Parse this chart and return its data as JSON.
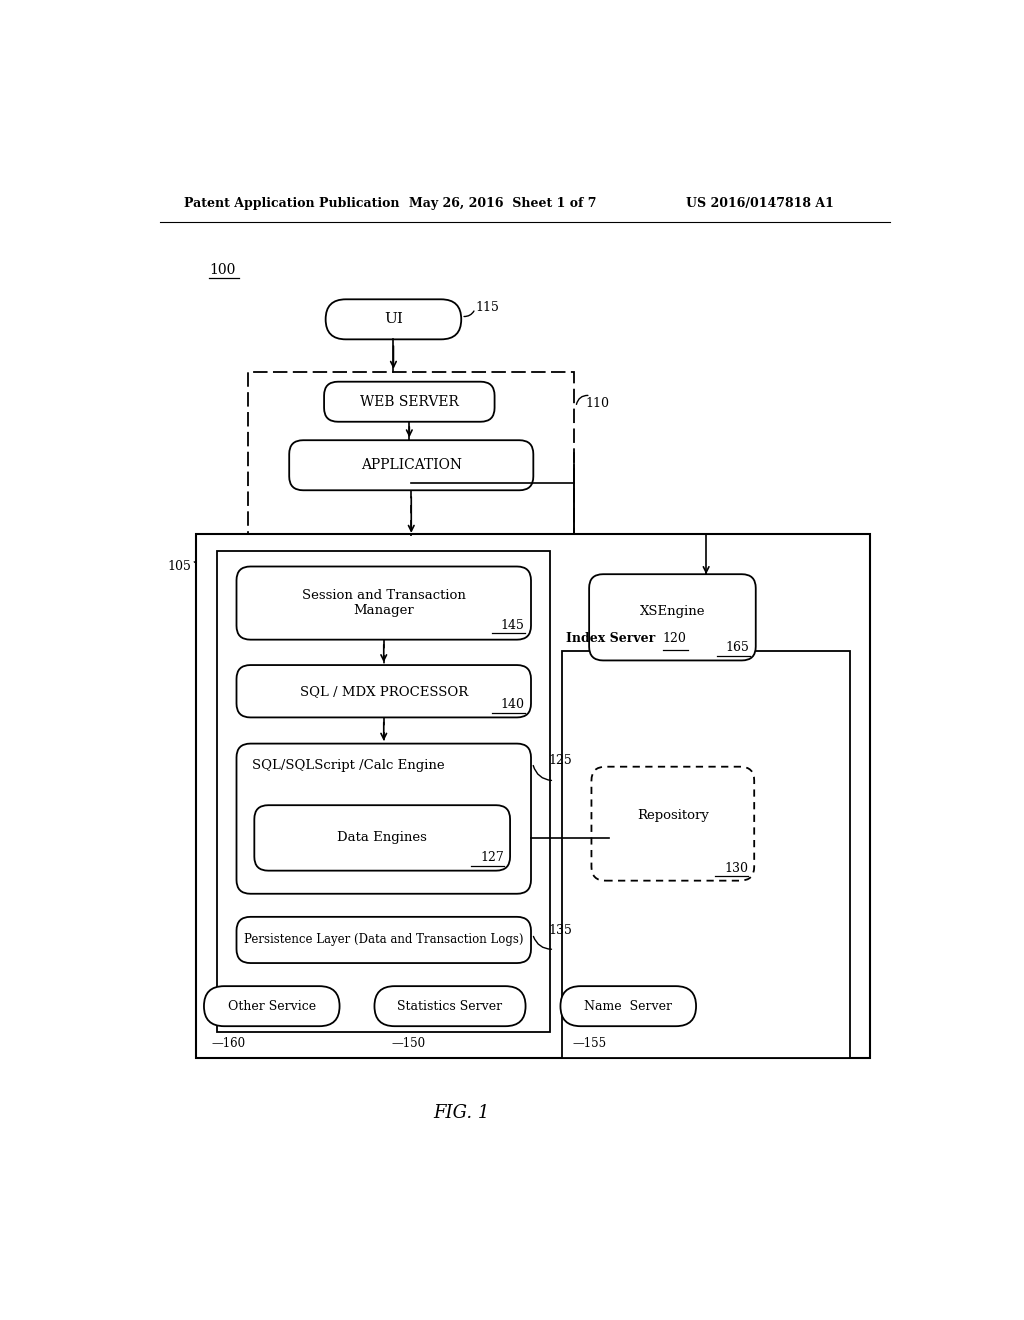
{
  "bg_color": "#ffffff",
  "header_left": "Patent Application Publication",
  "header_mid": "May 26, 2016  Sheet 1 of 7",
  "header_right": "US 2016/0147818 A1",
  "footer_label": "FIG. 1",
  "label_100": "100",
  "label_110": "110",
  "label_115": "115",
  "label_105": "105",
  "label_120": "120",
  "label_125": "125",
  "label_127": "127",
  "label_130": "130",
  "label_135": "135",
  "label_140": "140",
  "label_145": "145",
  "label_150": "150",
  "label_155": "155",
  "label_160": "160",
  "label_165": "165",
  "text_ui": "UI",
  "text_webserver": "WEB SERVER",
  "text_application": "APPLICATION",
  "text_session": "Session and Transaction\nManager",
  "text_sql_mdx": "SQL / MDX PROCESSOR",
  "text_calc": "SQL/SQLScript /Calc Engine",
  "text_data_engines": "Data Engines",
  "text_persistence": "Persistence Layer (Data and Transaction Logs)",
  "text_other_service": "Other Service",
  "text_statistics": "Statistics Server",
  "text_name_server": "Name  Server",
  "text_xsengine": "XSEngine",
  "text_repository": "Repository",
  "text_index_server": "Index Server"
}
